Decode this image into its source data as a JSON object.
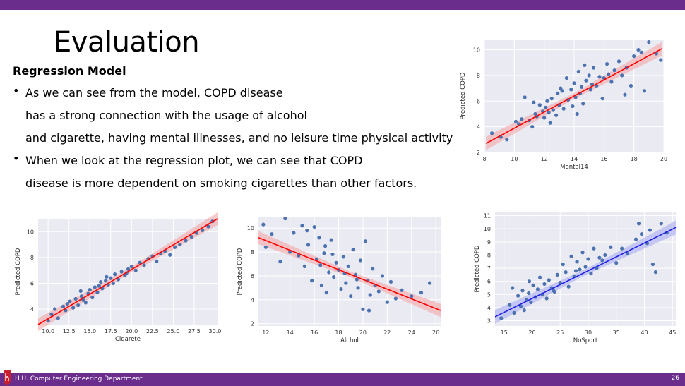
{
  "slide": {
    "title": "Evaluation",
    "subtitle": "Regression Model",
    "bullets": [
      {
        "lines": [
          "As we can see from the model, COPD disease",
          "has a strong connection with the usage of alcohol",
          "and cigarette, having mental illnesses, and no leisure time physical activity"
        ]
      },
      {
        "lines": [
          "When we look at the regression plot, we can see that COPD",
          "disease is more dependent on smoking cigarettes than other factors."
        ]
      }
    ],
    "footer": "H.U. Computer Engineering Department",
    "page_number": "26"
  },
  "colors": {
    "accent": "#6a2d8c",
    "point": "#4c72b0",
    "plot_bg": "#eaeaf2"
  },
  "chart_data": [
    {
      "type": "scatter",
      "xlabel": "Mental14",
      "ylabel": "Predicted COPD",
      "xlim": [
        8,
        20
      ],
      "ylim": [
        2,
        10.8
      ],
      "xticks": [
        "8",
        "10",
        "12",
        "14",
        "16",
        "18",
        "20"
      ],
      "yticks": [
        "2",
        "4",
        "6",
        "8",
        "10"
      ],
      "x": [
        8.5,
        9.1,
        9.5,
        10.1,
        10.3,
        10.7,
        11.0,
        11.2,
        11.4,
        11.5,
        11.7,
        11.9,
        12.0,
        12.1,
        12.2,
        12.3,
        12.5,
        12.6,
        12.8,
        12.9,
        13.0,
        13.2,
        13.3,
        13.5,
        13.6,
        13.8,
        13.9,
        14.0,
        14.1,
        14.3,
        14.4,
        14.5,
        14.6,
        14.8,
        15.0,
        15.1,
        15.3,
        15.5,
        15.7,
        15.9,
        16.0,
        16.2,
        16.5,
        16.7,
        17.0,
        17.2,
        17.5,
        17.8,
        18.0,
        18.3,
        18.7,
        19.0,
        19.5,
        19.8,
        10.5,
        11.3,
        12.4,
        13.1,
        14.2,
        15.2,
        16.3,
        17.4,
        18.5,
        14.7
      ],
      "y": [
        3.5,
        3.2,
        3.0,
        4.4,
        4.2,
        6.3,
        4.5,
        4.0,
        5.0,
        4.8,
        5.7,
        5.2,
        4.7,
        5.5,
        6.0,
        5.1,
        6.2,
        5.3,
        4.9,
        6.6,
        5.7,
        6.8,
        5.4,
        7.8,
        6.1,
        6.9,
        5.6,
        7.4,
        6.3,
        8.3,
        6.6,
        7.1,
        5.8,
        7.6,
        8.0,
        6.9,
        8.6,
        7.2,
        7.9,
        6.2,
        7.8,
        8.9,
        7.5,
        8.4,
        9.1,
        8.0,
        8.6,
        7.2,
        9.5,
        10.0,
        6.8,
        10.6,
        9.7,
        9.2,
        4.6,
        5.9,
        4.3,
        7.0,
        5.0,
        7.3,
        8.1,
        6.5,
        9.8,
        8.8
      ],
      "fit": [
        [
          8.1,
          2.7
        ],
        [
          19.9,
          10.1
        ]
      ],
      "fit_color": "#ff0000",
      "band_color": "#f4a6a6"
    },
    {
      "type": "scatter",
      "xlabel": "Cigarete",
      "ylabel": "Predicted COPD",
      "xlim": [
        8.8,
        30.3
      ],
      "ylim": [
        2.8,
        11.0
      ],
      "xticks": [
        "10.0",
        "12.5",
        "15.0",
        "17.5",
        "20.0",
        "22.5",
        "25.0",
        "27.5",
        "30.0"
      ],
      "yticks": [
        "4",
        "6",
        "8",
        "10"
      ],
      "x": [
        10.0,
        10.4,
        10.8,
        11.2,
        11.8,
        12.1,
        12.3,
        12.6,
        13.0,
        13.3,
        13.6,
        14.0,
        14.2,
        14.5,
        14.8,
        15.0,
        15.3,
        15.6,
        15.9,
        16.1,
        16.5,
        16.9,
        17.2,
        17.5,
        17.8,
        18.0,
        18.4,
        18.8,
        19.2,
        19.6,
        20.0,
        20.5,
        21.0,
        21.5,
        22.0,
        22.5,
        23.0,
        23.5,
        24.0,
        24.6,
        25.2,
        25.8,
        26.5,
        27.2,
        27.8,
        28.5,
        29.2,
        29.7,
        16.3,
        17.0,
        13.9,
        19.4
      ],
      "y": [
        3.1,
        3.6,
        4.0,
        3.3,
        4.2,
        3.9,
        4.4,
        4.6,
        4.1,
        4.8,
        4.3,
        5.0,
        4.7,
        4.5,
        5.2,
        5.5,
        4.9,
        5.7,
        5.3,
        5.8,
        5.6,
        6.2,
        5.9,
        6.4,
        6.0,
        6.7,
        6.3,
        6.9,
        6.6,
        7.1,
        7.3,
        7.0,
        7.6,
        7.4,
        7.9,
        8.1,
        7.7,
        8.3,
        8.5,
        8.2,
        8.8,
        9.0,
        9.3,
        9.6,
        9.9,
        10.1,
        10.4,
        10.8,
        6.1,
        6.5,
        5.4,
        6.8
      ],
      "fit": [
        [
          8.8,
          2.8
        ],
        [
          30.3,
          11.0
        ]
      ],
      "fit_color": "#ff0000",
      "band_color": "#f4a6a6"
    },
    {
      "type": "scatter",
      "xlabel": "Alchol",
      "ylabel": "Predicted COPD",
      "xlim": [
        11.4,
        26.4
      ],
      "ylim": [
        1.8,
        10.9
      ],
      "xticks": [
        "12",
        "14",
        "16",
        "18",
        "20",
        "22",
        "24",
        "26"
      ],
      "yticks": [
        "2",
        "4",
        "6",
        "8",
        "10"
      ],
      "x": [
        11.8,
        12.0,
        12.5,
        13.2,
        13.6,
        14.0,
        14.3,
        14.7,
        15.0,
        15.2,
        15.5,
        15.8,
        16.0,
        16.2,
        16.4,
        16.6,
        16.8,
        17.0,
        17.2,
        17.4,
        17.6,
        17.8,
        18.0,
        18.2,
        18.4,
        18.6,
        18.8,
        19.0,
        19.2,
        19.4,
        19.6,
        19.8,
        20.0,
        20.2,
        20.4,
        20.6,
        20.8,
        21.0,
        21.3,
        21.6,
        22.0,
        22.3,
        22.7,
        23.2,
        24.0,
        24.8,
        25.5,
        16.5,
        17.5,
        18.5,
        19.5,
        20.5,
        15.4,
        16.9
      ],
      "y": [
        10.3,
        8.4,
        9.5,
        7.2,
        10.8,
        8.0,
        9.6,
        7.7,
        10.2,
        6.8,
        8.6,
        5.6,
        10.1,
        7.4,
        9.2,
        5.2,
        7.9,
        4.6,
        6.3,
        9.0,
        5.9,
        7.1,
        6.5,
        4.9,
        7.6,
        5.4,
        6.8,
        4.3,
        8.2,
        6.1,
        5.0,
        7.3,
        3.2,
        8.9,
        5.6,
        4.4,
        6.6,
        5.2,
        4.7,
        6.0,
        3.8,
        5.5,
        4.1,
        4.8,
        4.3,
        4.6,
        5.4,
        6.9,
        7.8,
        6.2,
        5.7,
        3.1,
        9.8,
        8.5
      ],
      "fit": [
        [
          11.4,
          9.2
        ],
        [
          26.4,
          3.1
        ]
      ],
      "fit_color": "#ff0000",
      "band_color": "#f4a6a6"
    },
    {
      "type": "scatter",
      "xlabel": "NoSport",
      "ylabel": "Predicted COPD",
      "xlim": [
        13.4,
        45.6
      ],
      "ylim": [
        2.6,
        11.3
      ],
      "xticks": [
        "15",
        "20",
        "25",
        "30",
        "35",
        "40",
        "45"
      ],
      "yticks": [
        "3",
        "4",
        "5",
        "6",
        "7",
        "8",
        "9",
        "10",
        "11"
      ],
      "x": [
        14.5,
        16.0,
        16.8,
        17.5,
        18.0,
        18.3,
        18.6,
        19.0,
        19.4,
        19.8,
        20.2,
        20.6,
        21.0,
        21.4,
        21.8,
        22.2,
        22.6,
        23.0,
        23.5,
        24.0,
        24.5,
        25.0,
        25.5,
        26.0,
        26.5,
        27.0,
        27.5,
        28.0,
        28.5,
        29.0,
        29.5,
        30.0,
        30.5,
        31.0,
        31.5,
        32.0,
        33.0,
        34.0,
        35.0,
        36.0,
        37.0,
        38.5,
        39.0,
        39.5,
        40.5,
        41.0,
        41.5,
        42.0,
        43.0,
        44.0,
        16.5,
        19.5,
        23.8,
        27.8,
        32.5
      ],
      "y": [
        3.2,
        4.2,
        3.6,
        4.9,
        4.1,
        5.3,
        3.8,
        4.6,
        5.1,
        4.4,
        5.7,
        4.8,
        5.4,
        6.3,
        5.0,
        5.8,
        4.7,
        6.1,
        5.5,
        5.2,
        6.5,
        5.9,
        7.3,
        6.7,
        5.6,
        7.9,
        6.4,
        7.5,
        6.9,
        8.2,
        7.1,
        7.7,
        6.6,
        8.5,
        7.0,
        7.8,
        8.0,
        8.6,
        7.4,
        8.5,
        8.1,
        9.2,
        10.4,
        9.6,
        8.9,
        9.9,
        7.3,
        6.7,
        10.4,
        9.7,
        5.5,
        6.0,
        5.3,
        6.8,
        7.6
      ],
      "fit": [
        [
          13.4,
          3.3
        ],
        [
          45.6,
          10.1
        ]
      ],
      "fit_color": "#1f1fe6",
      "band_color": "#a9abf2"
    }
  ]
}
